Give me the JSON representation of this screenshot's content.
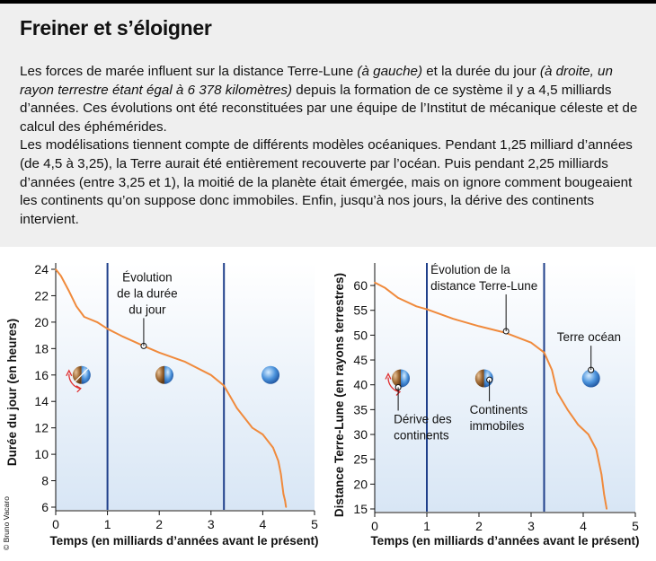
{
  "header": {
    "title": "Freiner et s’éloigner",
    "paragraph1": {
      "part1": "Les forces de marée influent sur la distance Terre-Lune ",
      "italic1": "(à gauche)",
      "part2": " et la durée du jour ",
      "italic2": "(à droite, un rayon terrestre étant égal à 6 378 kilomètres)",
      "part3": " depuis la formation de ce système il y a 4,5 milliards d’années. Ces évolutions ont été reconstituées par une équipe de l’Institut de mécanique céleste et de calcul des éphémérides."
    },
    "paragraph2": "Les modélisations tiennent compte de différents modèles océaniques. Pendant 1,25 milliard d’années (de 4,5 à 3,25), la Terre aurait été entièrement recouverte par l’océan. Puis pendant 2,25 milliards d’années (entre 3,25 et 1), la moitié de la planète était émergée, mais on ignore comment bougeaient les continents qu’on suppose donc immobiles. Enfin, jusqu’à nos jours, la dérive des continents intervient."
  },
  "credit": "© Bruno Vacaro",
  "colors": {
    "curve": "#f08a3c",
    "divider": "#1f3f8a",
    "ocean": "#4a90d9",
    "land": "#8b5a2b",
    "header_bg": "#efefef"
  },
  "chart_data": [
    {
      "type": "line",
      "title": "",
      "xlabel": "Temps (en milliards d’années avant le présent)",
      "ylabel": "Durée du jour (en heures)",
      "xlim": [
        0,
        5
      ],
      "ylim": [
        6,
        24
      ],
      "xticks": [
        "0",
        "1",
        "2",
        "3",
        "4",
        "5"
      ],
      "yticks": [
        "6",
        "8",
        "10",
        "12",
        "14",
        "16",
        "18",
        "20",
        "22",
        "24"
      ],
      "dividers": [
        1,
        3.25
      ],
      "series": [
        {
          "x": [
            0,
            0.1,
            0.25,
            0.4,
            0.55,
            0.8,
            1.0,
            1.3,
            1.7,
            2.0,
            2.5,
            3.0,
            3.25,
            3.5,
            3.8,
            4.0,
            4.2,
            4.3,
            4.35,
            4.4,
            4.43,
            4.45
          ],
          "y": [
            24,
            23.5,
            22.4,
            21.2,
            20.4,
            20.0,
            19.5,
            18.9,
            18.2,
            17.7,
            17.0,
            16.0,
            15.2,
            13.5,
            12.0,
            11.5,
            10.5,
            9.5,
            8.5,
            7.0,
            6.5,
            6.0
          ]
        }
      ],
      "annotations": [
        {
          "text_lines": [
            "Évolution",
            "de la durée",
            "du jour"
          ],
          "x": 1.7,
          "y": 18.2
        }
      ],
      "icons": [
        {
          "label": "",
          "x": 0.5,
          "y": 16.0,
          "kind": "half-earth",
          "rotation_arrow": true
        },
        {
          "label": "",
          "x": 2.1,
          "y": 16.0,
          "kind": "half-earth"
        },
        {
          "label": "",
          "x": 4.15,
          "y": 16.0,
          "kind": "ocean-earth"
        }
      ]
    },
    {
      "type": "line",
      "title": "",
      "xlabel": "Temps (en milliards d’années avant le présent)",
      "ylabel": "Distance Terre-Lune (en rayons terrestres)",
      "xlim": [
        0,
        5
      ],
      "ylim": [
        15,
        62
      ],
      "xticks": [
        "0",
        "1",
        "2",
        "3",
        "4",
        "5"
      ],
      "yticks": [
        "15",
        "20",
        "25",
        "30",
        "35",
        "40",
        "45",
        "50",
        "55",
        "60"
      ],
      "dividers": [
        1,
        3.25
      ],
      "series": [
        {
          "x": [
            0,
            0.2,
            0.45,
            0.8,
            1.0,
            1.5,
            2.0,
            2.5,
            3.0,
            3.25,
            3.4,
            3.5,
            3.7,
            3.9,
            4.1,
            4.25,
            4.35,
            4.4,
            4.45
          ],
          "y": [
            60.6,
            59.5,
            57.5,
            55.8,
            55.2,
            53.3,
            51.8,
            50.5,
            48.5,
            46.5,
            43.0,
            38.5,
            35.0,
            32.0,
            30.0,
            27.0,
            22.0,
            18.0,
            15.0
          ]
        }
      ],
      "annotations": [
        {
          "text_lines": [
            "Évolution de la",
            "distance Terre-Lune"
          ],
          "x": 2.52,
          "y": 50.8
        },
        {
          "text_lines": [
            "Terre océan"
          ],
          "x": 4.15,
          "y": 43.0
        },
        {
          "text_lines": [
            "Continents",
            "immobiles"
          ],
          "x": 2.2,
          "y": 41.0
        },
        {
          "text_lines": [
            "Dérive des",
            "continents"
          ],
          "x": 0.45,
          "y": 39.5
        }
      ],
      "icons": [
        {
          "label": "",
          "x": 0.5,
          "y": 41.3,
          "kind": "half-earth",
          "rotation_arrow": true
        },
        {
          "label": "",
          "x": 2.1,
          "y": 41.3,
          "kind": "half-earth"
        },
        {
          "label": "",
          "x": 4.15,
          "y": 41.3,
          "kind": "ocean-earth"
        }
      ]
    }
  ]
}
